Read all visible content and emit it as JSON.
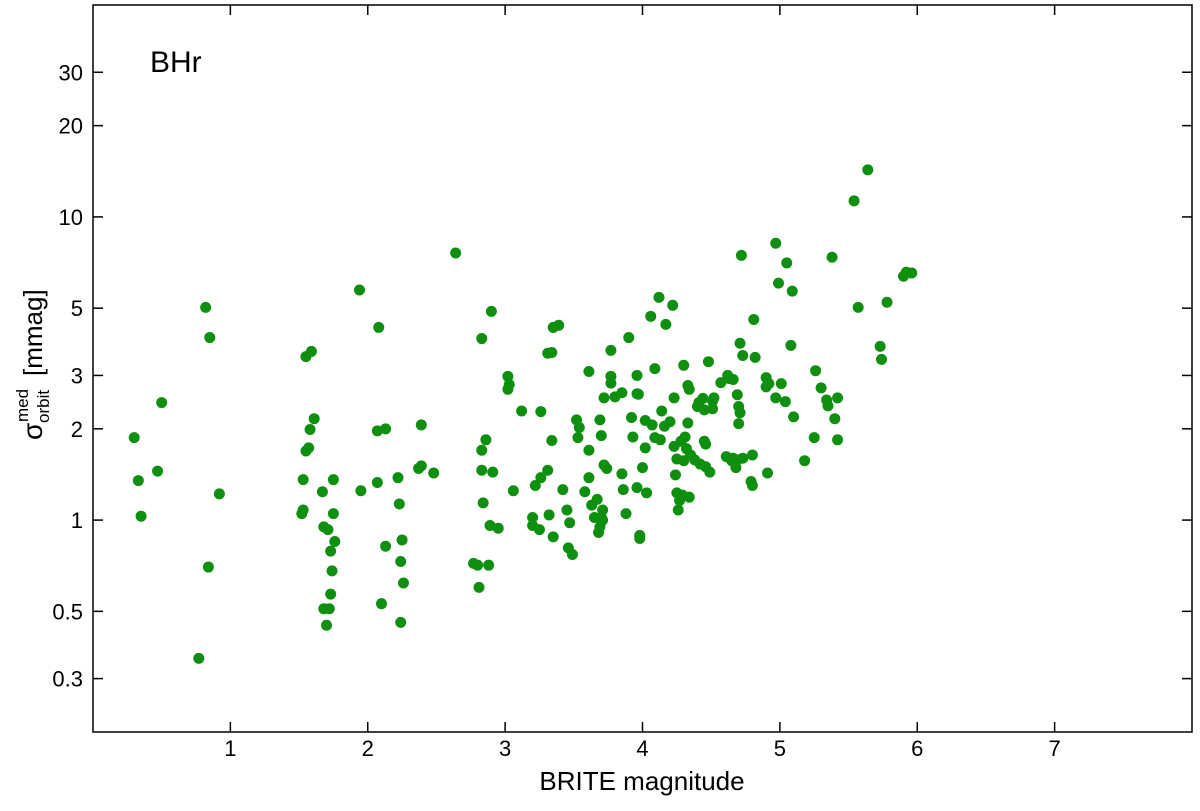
{
  "chart_data": {
    "type": "scatter",
    "annotation": "BHr",
    "xlabel": "BRITE magnitude",
    "ylabel": {
      "symbol": "σ",
      "superscript": "med",
      "subscript": "orbit",
      "unit": "[mmag]"
    },
    "xlim": [
      0,
      8
    ],
    "xticks": [
      1,
      2,
      3,
      4,
      5,
      6,
      7
    ],
    "ylim": [
      0.2,
      50
    ],
    "yticks": [
      0.3,
      0.5,
      1,
      2,
      3,
      5,
      10,
      20,
      30
    ],
    "ylog": true,
    "color": "#0f8f0f",
    "x": [
      0.3,
      0.33,
      0.35,
      0.47,
      0.5,
      0.82,
      0.85,
      0.84,
      0.92,
      0.77,
      1.55,
      1.59,
      1.61,
      1.58,
      1.55,
      1.57,
      1.53,
      1.53,
      1.52,
      1.67,
      1.68,
      1.71,
      1.75,
      1.75,
      1.76,
      1.73,
      1.74,
      1.73,
      1.68,
      1.72,
      1.7,
      1.94,
      1.95,
      2.08,
      2.07,
      2.13,
      2.07,
      2.13,
      2.1,
      2.22,
      2.23,
      2.25,
      2.24,
      2.26,
      2.24,
      2.39,
      2.37,
      2.39,
      2.48,
      2.64,
      2.9,
      2.83,
      2.86,
      2.83,
      2.83,
      2.91,
      2.84,
      2.89,
      2.95,
      2.77,
      2.8,
      2.81,
      2.88,
      3.02,
      3.03,
      3.02,
      3.06,
      3.12,
      3.2,
      3.2,
      3.22,
      3.25,
      3.26,
      3.26,
      3.31,
      3.31,
      3.34,
      3.34,
      3.35,
      3.39,
      3.32,
      3.35,
      3.42,
      3.45,
      3.47,
      3.46,
      3.49,
      3.52,
      3.53,
      3.54,
      3.58,
      3.61,
      3.61,
      3.61,
      3.63,
      3.65,
      3.67,
      3.68,
      3.69,
      3.7,
      3.71,
      3.71,
      3.7,
      3.69,
      3.72,
      3.72,
      3.74,
      3.77,
      3.77,
      3.77,
      3.8,
      3.85,
      3.85,
      3.86,
      3.88,
      3.9,
      3.92,
      3.93,
      3.97,
      3.96,
      3.96,
      3.96,
      3.98,
      3.98,
      4.0,
      4.02,
      4.03,
      4.02,
      4.06,
      4.07,
      4.09,
      4.09,
      4.12,
      4.13,
      4.14,
      4.16,
      4.17,
      4.2,
      4.22,
      4.23,
      4.23,
      4.24,
      4.25,
      4.25,
      4.26,
      4.27,
      4.28,
      4.29,
      4.3,
      4.3,
      4.31,
      4.32,
      4.33,
      4.33,
      4.34,
      4.34,
      4.35,
      4.38,
      4.4,
      4.41,
      4.42,
      4.44,
      4.45,
      4.45,
      4.46,
      4.46,
      4.48,
      4.49,
      4.51,
      4.51,
      4.52,
      4.57,
      4.61,
      4.62,
      4.63,
      4.65,
      4.66,
      4.66,
      4.68,
      4.69,
      4.69,
      4.7,
      4.7,
      4.71,
      4.72,
      4.73,
      4.71,
      4.73,
      4.79,
      4.8,
      4.81,
      4.82,
      4.8,
      4.91,
      4.9,
      4.9,
      4.92,
      4.97,
      4.97,
      4.99,
      5.01,
      5.04,
      5.05,
      5.08,
      5.09,
      5.1,
      5.18,
      5.25,
      5.26,
      5.3,
      5.34,
      5.35,
      5.38,
      5.4,
      5.42,
      5.42,
      5.54,
      5.57,
      5.64,
      5.73,
      5.74,
      5.78,
      5.9,
      5.92,
      5.96
    ],
    "values": [
      1.87,
      1.35,
      1.03,
      1.45,
      2.44,
      5.03,
      4.0,
      0.7,
      1.22,
      0.35,
      3.46,
      3.6,
      2.16,
      1.99,
      1.69,
      1.73,
      1.36,
      1.08,
      1.05,
      1.24,
      0.95,
      0.93,
      1.36,
      1.05,
      0.85,
      0.79,
      0.68,
      0.57,
      0.51,
      0.51,
      0.45,
      5.74,
      1.25,
      4.32,
      1.97,
      2.0,
      1.33,
      0.82,
      0.53,
      1.38,
      1.13,
      0.86,
      0.73,
      0.62,
      0.46,
      2.06,
      1.48,
      1.51,
      1.43,
      7.6,
      4.88,
      3.97,
      1.84,
      1.7,
      1.46,
      1.44,
      1.14,
      0.96,
      0.94,
      0.72,
      0.71,
      0.6,
      0.71,
      2.98,
      2.8,
      2.7,
      1.25,
      2.29,
      1.02,
      0.96,
      1.3,
      0.93,
      2.28,
      1.38,
      1.46,
      3.55,
      3.57,
      1.83,
      4.32,
      4.39,
      1.04,
      0.88,
      1.26,
      1.08,
      0.98,
      0.81,
      0.77,
      2.14,
      1.87,
      2.02,
      1.24,
      3.09,
      1.7,
      1.38,
      1.12,
      1.02,
      1.17,
      0.91,
      0.95,
      1.02,
      1.08,
      1.0,
      1.9,
      2.14,
      2.53,
      1.52,
      1.48,
      2.98,
      3.63,
      2.83,
      2.55,
      2.63,
      1.42,
      1.26,
      1.05,
      4.0,
      2.18,
      1.88,
      2.6,
      3.0,
      2.61,
      1.28,
      0.89,
      0.87,
      1.49,
      1.73,
      1.23,
      2.13,
      4.7,
      2.06,
      3.16,
      1.87,
      5.43,
      1.84,
      2.29,
      2.04,
      4.42,
      2.11,
      5.11,
      2.53,
      1.75,
      1.41,
      1.59,
      1.23,
      1.08,
      1.16,
      1.82,
      1.21,
      1.57,
      3.24,
      1.88,
      1.72,
      2.78,
      2.09,
      2.7,
      1.19,
      1.64,
      1.58,
      2.37,
      2.44,
      1.53,
      2.52,
      2.31,
      1.82,
      1.5,
      1.78,
      3.33,
      1.44,
      2.47,
      2.33,
      2.53,
      2.84,
      1.62,
      3.0,
      2.93,
      1.57,
      1.6,
      2.91,
      1.49,
      1.58,
      2.59,
      2.08,
      2.37,
      3.83,
      7.47,
      3.49,
      2.26,
      1.6,
      1.34,
      1.3,
      4.59,
      3.44,
      1.64,
      1.43,
      2.95,
      2.75,
      2.82,
      8.19,
      2.53,
      6.05,
      2.82,
      2.46,
      7.05,
      3.77,
      5.69,
      2.19,
      1.57,
      1.87,
      3.11,
      2.73,
      2.49,
      2.38,
      7.36,
      2.16,
      1.84,
      2.53,
      11.3,
      5.03,
      14.3,
      3.74,
      3.39,
      5.23,
      6.37,
      6.57,
      6.53
    ]
  }
}
